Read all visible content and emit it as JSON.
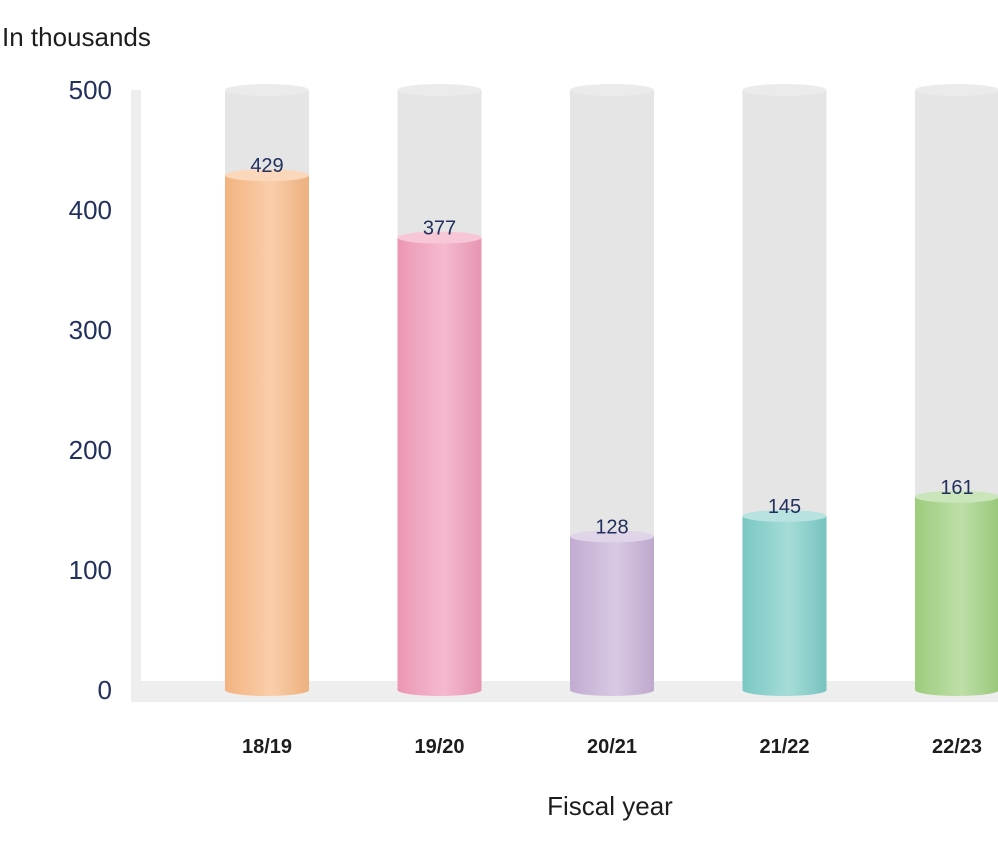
{
  "chart_data": {
    "type": "bar",
    "ylabel": "In thousands",
    "xlabel": "Fiscal year",
    "categories": [
      "18/19",
      "19/20",
      "20/21",
      "21/22",
      "22/23"
    ],
    "values": [
      429,
      377,
      128,
      145,
      161
    ],
    "value_labels": [
      "429",
      "377",
      "128",
      "145",
      "161"
    ],
    "ylim": [
      0,
      500
    ],
    "yticks": [
      {
        "value": 0,
        "label": "0"
      },
      {
        "value": 100,
        "label": "100"
      },
      {
        "value": 200,
        "label": "200"
      },
      {
        "value": 300,
        "label": "300"
      },
      {
        "value": 400,
        "label": "400"
      },
      {
        "value": 500,
        "label": "500"
      }
    ],
    "bar_colors": [
      "#f7b783",
      "#f09ab8",
      "#c6b0d6",
      "#7ccbc6",
      "#9fd07f"
    ],
    "track_color": "#e5e5e5",
    "grid": false
  }
}
